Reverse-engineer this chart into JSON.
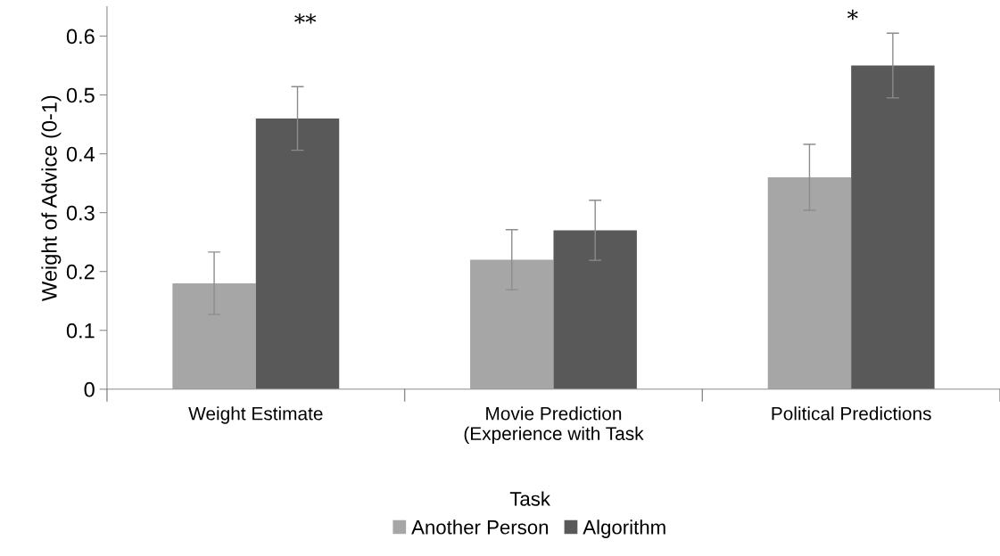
{
  "chart_data": {
    "type": "bar",
    "categories": [
      "Weight Estimate",
      "Movie Prediction\n(Experience with Task",
      "Political Predictions"
    ],
    "series": [
      {
        "name": "Another Person",
        "color": "#a6a6a6",
        "values": [
          0.18,
          0.22,
          0.36
        ],
        "errors": [
          0.053,
          0.051,
          0.056
        ]
      },
      {
        "name": "Algorithm",
        "color": "#595959",
        "values": [
          0.46,
          0.27,
          0.55
        ],
        "errors": [
          0.054,
          0.051,
          0.055
        ]
      }
    ],
    "ylabel": "Weight of Advice (0-1)",
    "legend_title": "Task",
    "legend": "bottom",
    "ylim": [
      0,
      0.65
    ],
    "yticks": [
      {
        "value": 0,
        "label": "0"
      },
      0.1,
      0.2,
      0.3,
      0.4,
      0.5,
      0.6
    ],
    "grid": false,
    "annotations": [
      "**",
      "*"
    ]
  }
}
